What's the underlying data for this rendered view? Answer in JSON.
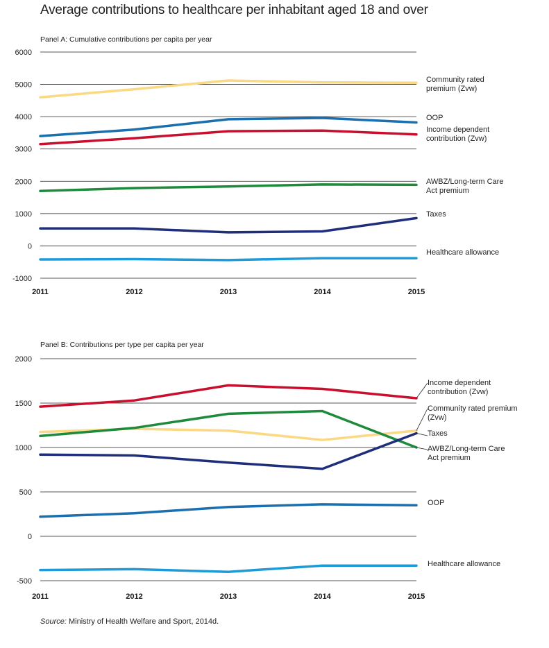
{
  "title": "Average contributions to healthcare per inhabitant aged 18 and over",
  "source_label": "Source:",
  "source_text": " Ministry of Health Welfare and Sport, 2014d.",
  "chart_data": [
    {
      "type": "line",
      "panel_title": "Panel A: Cumulative contributions per capita per year",
      "x": [
        "2011",
        "2012",
        "2013",
        "2014",
        "2015"
      ],
      "ylim": [
        -1000,
        6000
      ],
      "yticks": [
        6000,
        5000,
        4000,
        3000,
        2000,
        1000,
        0,
        -1000
      ],
      "grid": true,
      "series": [
        {
          "name": "Community rated premium (Zvw)",
          "label_lines": [
            "Community rated",
            "premium (Zvw)"
          ],
          "color": "#fbd984",
          "values": [
            4600,
            4850,
            5120,
            5060,
            5050
          ]
        },
        {
          "name": "OOP",
          "label_lines": [
            "OOP"
          ],
          "color": "#1b6fae",
          "values": [
            3400,
            3600,
            3920,
            3960,
            3820
          ]
        },
        {
          "name": "Income dependent contribution (Zvw)",
          "label_lines": [
            "Income dependent",
            "contribution (Zvw)"
          ],
          "color": "#c8102e",
          "values": [
            3150,
            3330,
            3550,
            3570,
            3450
          ]
        },
        {
          "name": "AWBZ/Long-term Care Act premium",
          "label_lines": [
            "AWBZ/Long-term Care",
            "Act premium"
          ],
          "color": "#1d8a3c",
          "values": [
            1700,
            1790,
            1840,
            1900,
            1890
          ]
        },
        {
          "name": "Taxes",
          "label_lines": [
            "Taxes"
          ],
          "color": "#1f2e7a",
          "values": [
            540,
            540,
            420,
            450,
            860
          ]
        },
        {
          "name": "Healthcare allowance",
          "label_lines": [
            "Healthcare allowance"
          ],
          "color": "#1e9bd7",
          "values": [
            -420,
            -410,
            -440,
            -380,
            -380
          ]
        }
      ]
    },
    {
      "type": "line",
      "panel_title": "Panel B: Contributions per type per capita per year",
      "x": [
        "2011",
        "2012",
        "2013",
        "2014",
        "2015"
      ],
      "ylim": [
        -500,
        2000
      ],
      "yticks": [
        2000,
        1500,
        1000,
        500,
        0,
        -500
      ],
      "grid": true,
      "series": [
        {
          "name": "Income dependent contribution (Zvw)",
          "label_lines": [
            "Income dependent",
            "contribution (Zvw)"
          ],
          "color": "#c8102e",
          "values": [
            1460,
            1530,
            1700,
            1660,
            1555
          ]
        },
        {
          "name": "Community rated premium (Zvw)",
          "label_lines": [
            "Community rated premium",
            "(Zvw)"
          ],
          "color": "#fbd984",
          "values": [
            1175,
            1210,
            1190,
            1085,
            1190
          ]
        },
        {
          "name": "AWBZ/Long-term Care Act premium",
          "label_lines": [
            "AWBZ/Long-term Care",
            "Act premium"
          ],
          "color": "#1d8a3c",
          "values": [
            1130,
            1220,
            1380,
            1410,
            1000
          ]
        },
        {
          "name": "Taxes",
          "label_lines": [
            "Taxes"
          ],
          "color": "#1f2e7a",
          "values": [
            920,
            910,
            830,
            760,
            1160
          ]
        },
        {
          "name": "OOP",
          "label_lines": [
            "OOP"
          ],
          "color": "#1b6fae",
          "values": [
            220,
            260,
            330,
            360,
            350
          ]
        },
        {
          "name": "Healthcare allowance",
          "label_lines": [
            "Healthcare allowance"
          ],
          "color": "#1e9bd7",
          "values": [
            -380,
            -370,
            -400,
            -330,
            -330
          ]
        }
      ]
    }
  ]
}
